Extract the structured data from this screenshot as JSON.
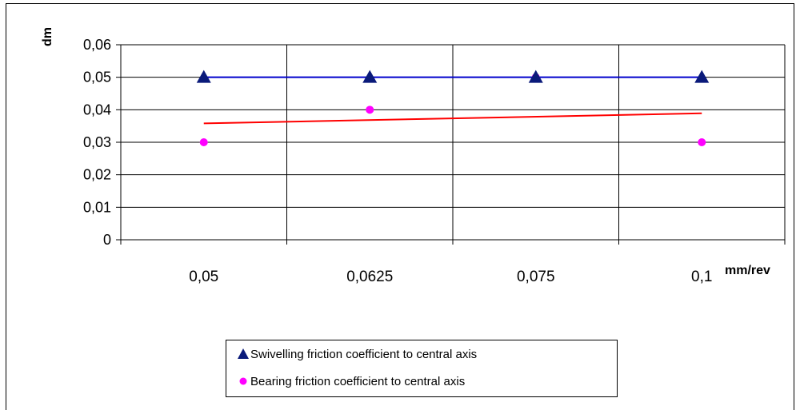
{
  "chart_data": {
    "type": "line",
    "title": "",
    "xlabel": "mm/rev",
    "ylabel": "dm",
    "categories": [
      "0,05",
      "0,0625",
      "0,075",
      "0,1"
    ],
    "y_ticks": [
      "0",
      "0,01",
      "0,02",
      "0,03",
      "0,04",
      "0,05",
      "0,06"
    ],
    "ylim": [
      0,
      0.06
    ],
    "grid": true,
    "legend_position": "bottom",
    "series": [
      {
        "name": "Swivelling friction coefficient to central axis",
        "values": [
          0.05,
          0.05,
          0.05,
          0.05
        ],
        "marker": "triangle",
        "color": "#0a1a7a",
        "line_color": "#0000cc"
      },
      {
        "name": "Bearing friction coefficient to central axis",
        "values": [
          0.03,
          0.04,
          0.05,
          0.03
        ],
        "marker": "circle",
        "color": "#ff00ff"
      }
    ],
    "trendline": {
      "color": "#ff0000",
      "start_value": 0.0358,
      "end_value": 0.0389
    }
  }
}
